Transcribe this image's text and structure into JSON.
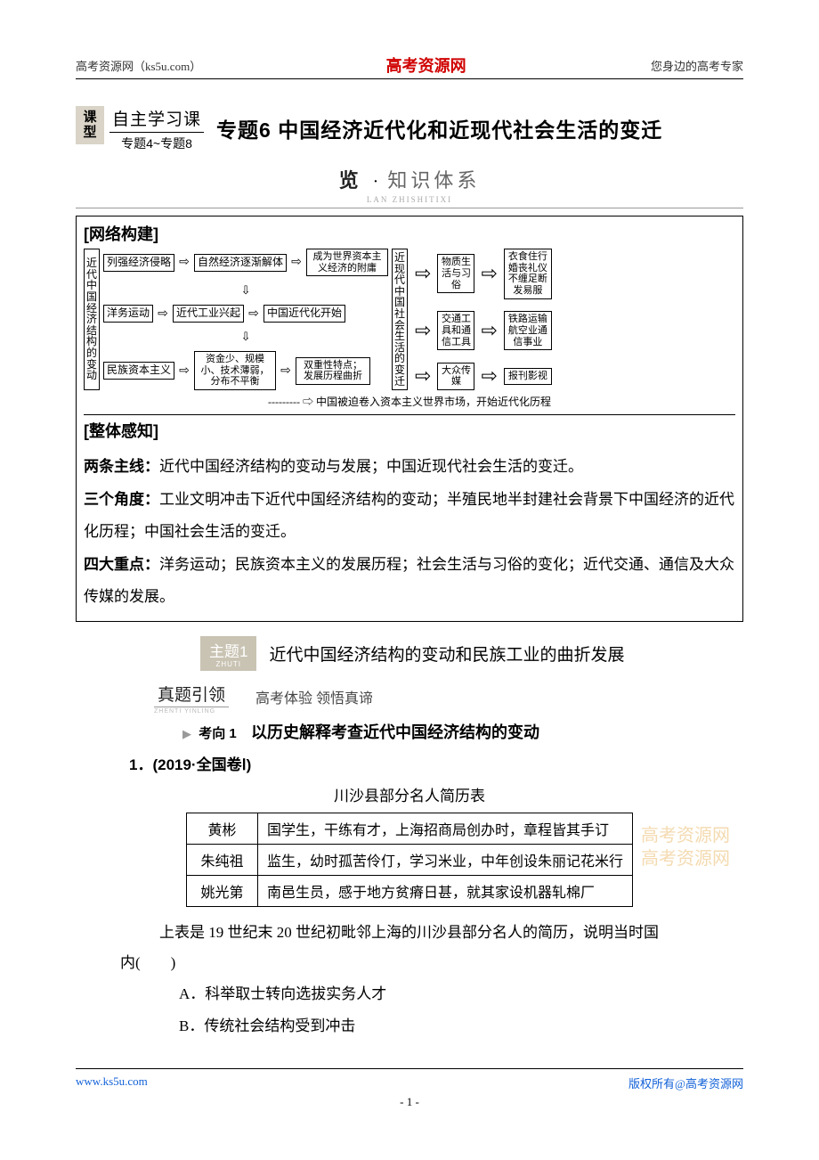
{
  "header": {
    "left": "高考资源网（ks5u.com）",
    "center": "高考资源网",
    "right": "您身边的高考专家"
  },
  "course": {
    "type_label": "课型",
    "line1": "自主学习课",
    "line2": "专题4~专题8",
    "main_title": "专题6  中国经济近代化和近现代社会生活的变迁"
  },
  "banner1": {
    "left": "览",
    "dot": "·",
    "right": "知识体系",
    "pinyin": "LAN ZHISHITIXI"
  },
  "network": {
    "heading": "[网络构建]",
    "left_vert": "近代中国经济结构的变动",
    "r1c1": "列强经济侵略",
    "r1c2": "自然经济逐渐解体",
    "r1c3": "成为世界资本主义经济的附庸",
    "r2c1": "洋务运动",
    "r2c2": "近代工业兴起",
    "r2c3": "中国近代化开始",
    "r3c1": "民族资本主义",
    "r3c2": "资金少、规模小、技术薄弱，分布不平衡",
    "r3c3": "双重性特点；发展历程曲折",
    "caption": "中国被迫卷入资本主义世界市场，开始近代化历程",
    "right_vert": "近现代中国社会生活的变迁",
    "rt1a": "物质生活与习俗",
    "rt1b": "衣食住行婚丧礼仪不缠足断发易服",
    "rt2a": "交通工具和通信工具",
    "rt2b": "铁路运输航空业通信事业",
    "rt3a": "大众传媒",
    "rt3b": "报刊影视"
  },
  "sense": {
    "heading": "[整体感知]",
    "p1_b": "两条主线：",
    "p1": "近代中国经济结构的变动与发展；中国近现代社会生活的变迁。",
    "p2_b": "三个角度：",
    "p2": "工业文明冲击下近代中国经济结构的变动；半殖民地半封建社会背景下中国经济的近代化历程；中国社会生活的变迁。",
    "p3_b": "四大重点：",
    "p3": "洋务运动；民族资本主义的发展历程；社会生活与习俗的变化；近代交通、通信及大众传媒的发展。"
  },
  "zhuti": {
    "tag": "主题1",
    "tag_sub": "ZHUTI",
    "title": "近代中国经济结构的变动和民族工业的曲折发展"
  },
  "zhenti": {
    "tag": "真题引领",
    "pinyin": "ZHENTI YINLING",
    "sub": "高考体验  领悟真谛"
  },
  "kaoxiang": {
    "label": "考向 1",
    "text": "以历史解释考查近代中国经济结构的变动"
  },
  "question": {
    "num": "1．(2019·全国卷Ⅰ)",
    "table_title": "川沙县部分名人简历表",
    "rows": [
      {
        "name": "黄彬",
        "desc": "国学生，干练有才，上海招商局创办时，章程皆其手订"
      },
      {
        "name": "朱纯祖",
        "desc": "监生，幼时孤苦伶仃，学习米业，中年创设朱丽记花米行"
      },
      {
        "name": "姚光第",
        "desc": "南邑生员，感于地方贫瘠日甚，就其家设机器轧棉厂"
      }
    ],
    "stem1": "上表是 19 世纪末 20 世纪初毗邻上海的川沙县部分名人的简历，说明当时国",
    "stem2": "内(　　)",
    "opts": {
      "A": "A．科举取士转向选拔实务人才",
      "B": "B．传统社会结构受到冲击"
    }
  },
  "watermark": {
    "l1": "高考资源网",
    "l2": "高考资源网"
  },
  "footer": {
    "left": "www.ks5u.com",
    "right": "版权所有@高考资源网",
    "page": "- 1 -"
  },
  "colors": {
    "red": "#d00000",
    "tan": "#d9d4c7",
    "blue": "#1060d8",
    "wm": "#f3d7a8"
  }
}
